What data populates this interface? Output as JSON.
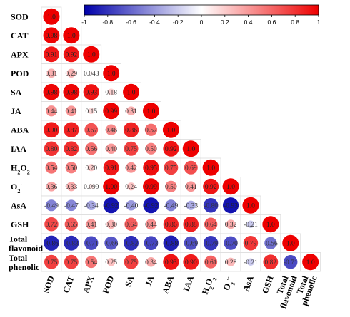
{
  "chart_data": {
    "type": "heatmap",
    "subtype": "lower-triangle correlation matrix (circles sized and colored by correlation)",
    "variables": [
      "SOD",
      "CAT",
      "APX",
      "POD",
      "SA",
      "JA",
      "ABA",
      "IAA",
      "H2O2",
      "O2·−",
      "AsA",
      "GSH",
      "Total flavonoid",
      "Total phenolic"
    ],
    "row_labels": [
      {
        "text": "SOD"
      },
      {
        "text": "CAT"
      },
      {
        "text": "APX"
      },
      {
        "text": "POD"
      },
      {
        "text": "SA"
      },
      {
        "text": "JA"
      },
      {
        "text": "ABA"
      },
      {
        "text": "IAA"
      },
      {
        "text": "H",
        "sub": "2",
        "text2": "O",
        "sub2": "2"
      },
      {
        "text": "O",
        "sub": "2",
        "sup": "·−"
      },
      {
        "text": "AsA"
      },
      {
        "text": "GSH"
      },
      {
        "lines": [
          "Total",
          "flavonoid"
        ]
      },
      {
        "lines": [
          "Total",
          "phenolic"
        ]
      }
    ],
    "matrix": [
      [
        "1.0"
      ],
      [
        "0.98",
        "1.0"
      ],
      [
        "0.91",
        "0.92",
        "1.0"
      ],
      [
        "0.31",
        "0.29",
        "0.043",
        "1.0"
      ],
      [
        "0.98",
        "0.98",
        "0.93",
        "0.18",
        "1.0"
      ],
      [
        "0.44",
        "0.41",
        "0.15",
        "0.99",
        "0.31",
        "1.0"
      ],
      [
        "0.90",
        "0.87",
        "0.67",
        "0.46",
        "0.86",
        "0.57",
        "1.0"
      ],
      [
        "0.80",
        "0.82",
        "0.56",
        "0.40",
        "0.75",
        "0.50",
        "0.92",
        "1.0"
      ],
      [
        "0.54",
        "0.50",
        "0.20",
        "0.91",
        "0.42",
        "0.95",
        "0.75",
        "0.69",
        "1.0"
      ],
      [
        "0.36",
        "0.33",
        "0.099",
        "1.00",
        "0.24",
        "0.99",
        "0.50",
        "0.41",
        "0.92",
        "1.0"
      ],
      [
        "-0.49",
        "-0.47",
        "-0.34",
        "-0.92",
        "-0.40",
        "-0.92",
        "-0.49",
        "-0.33",
        "-0.80",
        "-0.93",
        "1.0"
      ],
      [
        "0.72",
        "0.65",
        "0.41",
        "0.30",
        "0.64",
        "0.44",
        "0.86",
        "0.88",
        "0.64",
        "0.32",
        "-0.21",
        "1.0"
      ],
      [
        "-0.86",
        "-0.83",
        "-0.71",
        "-0.66",
        "-0.82",
        "-0.73",
        "-0.88",
        "-0.69",
        "-0.79",
        "-0.70",
        "0.79",
        "-0.56",
        "1.0"
      ],
      [
        "0.75",
        "0.75",
        "0.54",
        "0.25",
        "0.75",
        "0.34",
        "0.93",
        "0.90",
        "0.61",
        "0.28",
        "-0.21",
        "0.82",
        "-0.71",
        "1.0"
      ]
    ],
    "colorbar": {
      "range": [
        -1,
        1
      ],
      "ticks": [
        "-1",
        "-0.8",
        "-0.6",
        "-0.4",
        "-0.2",
        "0",
        "0.2",
        "0.4",
        "0.6",
        "0.8",
        "1"
      ],
      "colors": {
        "negative": "#0000aa",
        "zero": "#ffffff",
        "positive": "#ee0000"
      }
    },
    "legend_position": "top",
    "grid": true
  }
}
